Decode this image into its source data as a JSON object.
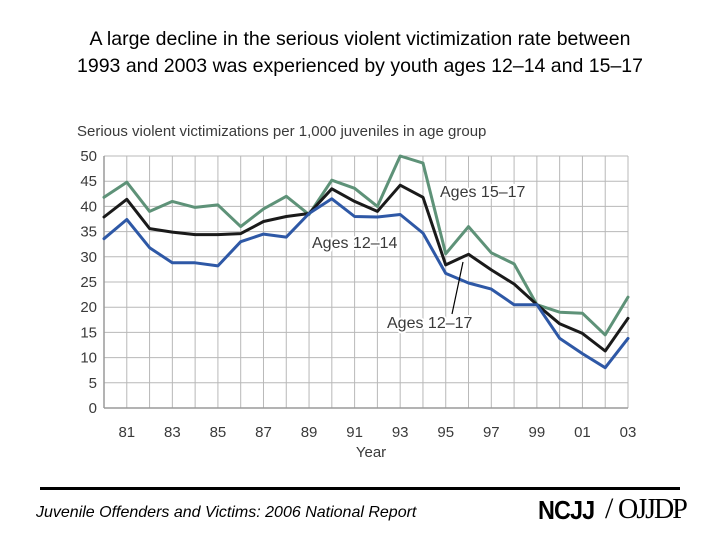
{
  "slide": {
    "title_line1": "A large decline in the serious violent victimization rate between",
    "title_line2": "1993 and 2003 was experienced by youth ages 12–14 and 15–17"
  },
  "footer": {
    "text": "Juvenile Offenders and Victims: 2006 National Report",
    "logo_ncjj": "NCJJ",
    "logo_separator": "/",
    "logo_ojjdp": "OJJDP"
  },
  "chart_data": {
    "type": "line",
    "title": "Serious violent victimizations per 1,000 juveniles in age group",
    "xlabel": "Year",
    "ylabel": "",
    "ylim": [
      0,
      50
    ],
    "yticks": [
      0,
      5,
      10,
      15,
      20,
      25,
      30,
      35,
      40,
      45,
      50
    ],
    "xlim": [
      1980,
      2003
    ],
    "xticks": [
      1981,
      1983,
      1985,
      1987,
      1989,
      1991,
      1993,
      1995,
      1997,
      1999,
      2001,
      2003
    ],
    "xtick_labels": [
      "81",
      "83",
      "85",
      "87",
      "89",
      "91",
      "93",
      "95",
      "97",
      "99",
      "01",
      "03"
    ],
    "grid": true,
    "x": [
      1980,
      1981,
      1982,
      1983,
      1984,
      1985,
      1986,
      1987,
      1988,
      1989,
      1990,
      1991,
      1992,
      1993,
      1994,
      1995,
      1996,
      1997,
      1998,
      1999,
      2000,
      2001,
      2002,
      2003
    ],
    "series": [
      {
        "name": "Ages 15–17",
        "color": "#5e9278",
        "values": [
          41.8,
          44.8,
          39.0,
          41.0,
          39.8,
          40.3,
          36.0,
          39.5,
          42.0,
          38.4,
          45.2,
          43.6,
          40.0,
          50.0,
          48.6,
          30.6,
          36.0,
          30.8,
          28.6,
          20.5,
          19.0,
          18.8,
          14.5,
          22.0
        ]
      },
      {
        "name": "Ages 12–17",
        "color": "#1a1a1a",
        "values": [
          37.9,
          41.4,
          35.6,
          34.9,
          34.4,
          34.4,
          34.6,
          37.0,
          38.0,
          38.6,
          43.5,
          41.0,
          39.0,
          44.2,
          41.8,
          28.4,
          30.5,
          27.4,
          24.6,
          20.5,
          16.7,
          14.8,
          11.3,
          17.8
        ]
      },
      {
        "name": "Ages 12–14",
        "color": "#2e58a6",
        "values": [
          33.6,
          37.4,
          31.8,
          28.8,
          28.8,
          28.2,
          33.0,
          34.5,
          33.9,
          38.6,
          41.5,
          38.0,
          37.9,
          38.4,
          34.7,
          26.7,
          24.8,
          23.6,
          20.5,
          20.5,
          13.8,
          10.8,
          8.0,
          13.8
        ]
      }
    ],
    "annotations": [
      {
        "text": "Ages 15–17",
        "series": "Ages 15–17"
      },
      {
        "text": "Ages 12–14",
        "series": "Ages 12–14"
      },
      {
        "text": "Ages 12–17",
        "series": "Ages 12–17"
      }
    ]
  }
}
